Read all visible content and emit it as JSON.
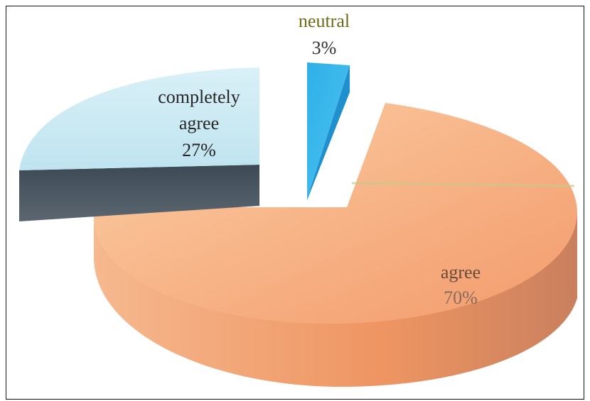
{
  "chart_data": {
    "type": "pie",
    "style": "3d-exploded",
    "slices": [
      {
        "label": "agree",
        "value": 70,
        "value_label": "70%",
        "color": "#f4a678",
        "label_color": "#6b4a3a"
      },
      {
        "label": "completely agree",
        "label_lines": [
          "completely",
          "agree"
        ],
        "value": 27,
        "value_label": "27%",
        "color": "#c8e9f3",
        "label_color": "#262626"
      },
      {
        "label": "neutral",
        "value": 3,
        "value_label": "3%",
        "color": "#37b7ea",
        "label_color": "#6e6a18"
      }
    ]
  }
}
